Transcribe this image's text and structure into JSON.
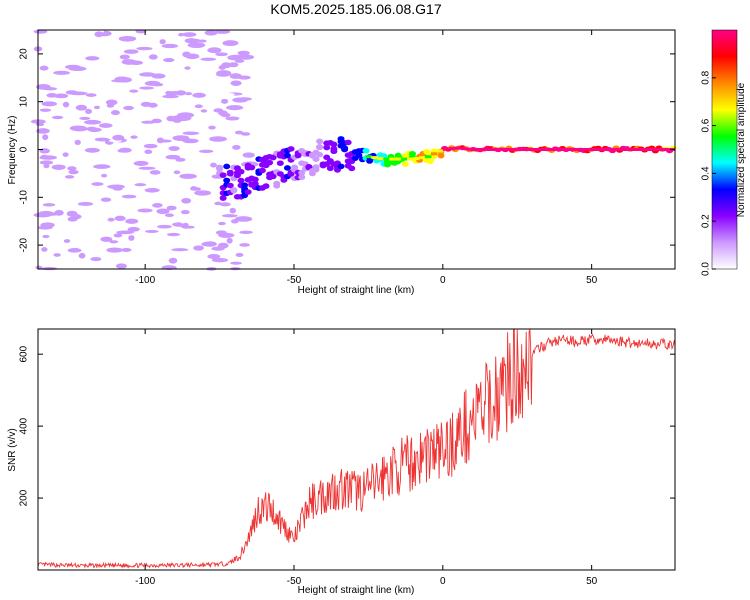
{
  "title": "KOM5.2025.185.06.08.G17",
  "chart_data": [
    {
      "type": "heatmap",
      "xlabel": "Height of straight line (km)",
      "ylabel": "Frequency (Hz)",
      "xlim": [
        -136,
        78
      ],
      "ylim": [
        -25,
        25
      ],
      "xticks": [
        -100,
        -50,
        0,
        50
      ],
      "yticks": [
        -20,
        -10,
        0,
        10,
        20
      ],
      "colorbar": {
        "label": "Normalized spectral amplitude",
        "range": [
          0.0,
          1.0
        ],
        "ticks": [
          0.0,
          0.2,
          0.4,
          0.6,
          0.8
        ],
        "colormap": [
          "#ffffff",
          "#cc99ff",
          "#8800ff",
          "#0000ff",
          "#00ffff",
          "#00ff00",
          "#ffff00",
          "#ff8800",
          "#ff0000",
          "#ff0088"
        ]
      },
      "ridge": [
        {
          "x": -72,
          "y": -7
        },
        {
          "x": -65,
          "y": -6
        },
        {
          "x": -60,
          "y": -5
        },
        {
          "x": -55,
          "y": -4
        },
        {
          "x": -50,
          "y": -3
        },
        {
          "x": -45,
          "y": -2
        },
        {
          "x": -40,
          "y": -1
        },
        {
          "x": -35,
          "y": -1
        },
        {
          "x": -30,
          "y": -1
        },
        {
          "x": -25,
          "y": -1.5
        },
        {
          "x": -20,
          "y": -2
        },
        {
          "x": -15,
          "y": -2
        },
        {
          "x": -10,
          "y": -2
        },
        {
          "x": -5,
          "y": -1.5
        },
        {
          "x": 0,
          "y": 0
        },
        {
          "x": 5,
          "y": 0.3
        },
        {
          "x": 10,
          "y": 0
        },
        {
          "x": 20,
          "y": 0
        },
        {
          "x": 40,
          "y": 0
        },
        {
          "x": 60,
          "y": 0
        },
        {
          "x": 78,
          "y": 0
        }
      ]
    },
    {
      "type": "line",
      "xlabel": "Height of straight line (km)",
      "ylabel": "SNR (v/v)",
      "xlim": [
        -136,
        78
      ],
      "ylim": [
        0,
        670
      ],
      "xticks": [
        -100,
        -50,
        0,
        50
      ],
      "yticks": [
        200,
        400,
        600
      ],
      "series": [
        {
          "color": "#ee3333",
          "x": [
            -136,
            -120,
            -100,
            -80,
            -72,
            -68,
            -65,
            -62,
            -58,
            -55,
            -50,
            -45,
            -40,
            -35,
            -30,
            -25,
            -20,
            -15,
            -10,
            -5,
            0,
            5,
            10,
            15,
            20,
            25,
            30,
            35,
            40,
            45,
            50,
            55,
            60,
            65,
            70,
            78
          ],
          "values": [
            15,
            12,
            13,
            14,
            18,
            40,
            95,
            170,
            175,
            140,
            85,
            185,
            210,
            230,
            220,
            225,
            260,
            285,
            300,
            330,
            330,
            370,
            420,
            455,
            505,
            560,
            600,
            630,
            640,
            635,
            640,
            640,
            635,
            630,
            630,
            625
          ]
        }
      ]
    }
  ]
}
